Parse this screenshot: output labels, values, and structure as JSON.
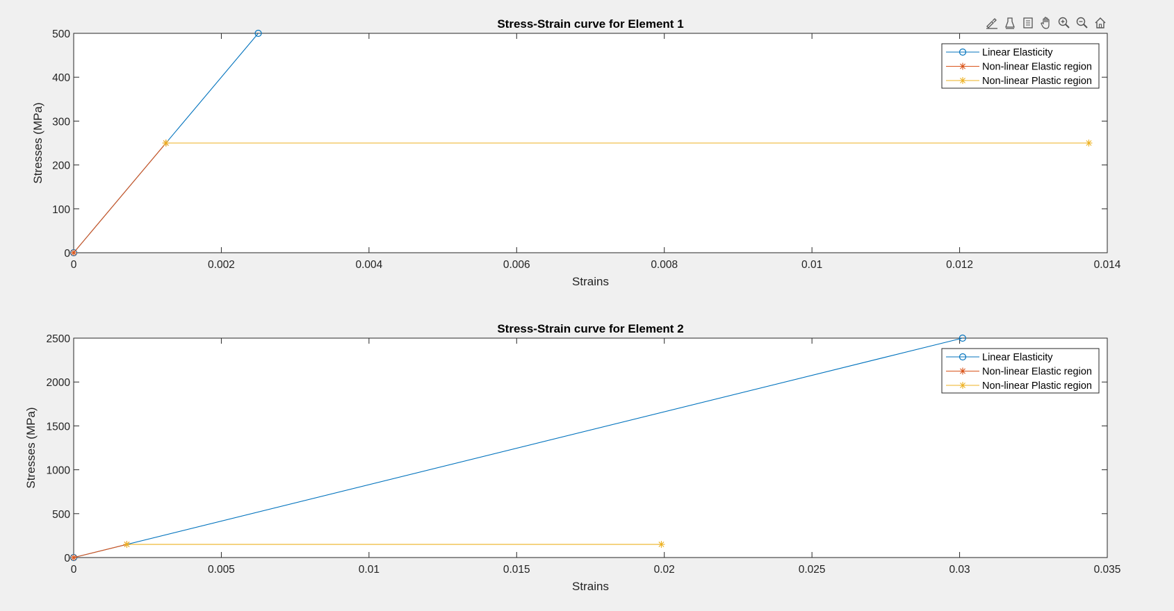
{
  "toolbar": {
    "icons": [
      "brush-icon",
      "data-tips-icon",
      "export-icon",
      "pan-icon",
      "zoom-in-icon",
      "zoom-out-icon",
      "home-icon"
    ]
  },
  "colors": {
    "linear": "#0072BD",
    "elastic": "#D95319",
    "plastic": "#EDB120"
  },
  "chart_data": [
    {
      "type": "line",
      "title": "Stress-Strain curve for Element 1",
      "xlabel": "Strains",
      "ylabel": "Stresses (MPa)",
      "xlim": [
        0,
        0.014
      ],
      "ylim": [
        0,
        500
      ],
      "xticks": [
        0,
        0.002,
        0.004,
        0.006,
        0.008,
        0.01,
        0.012,
        0.014
      ],
      "xtick_labels": [
        "0",
        "0.002",
        "0.004",
        "0.006",
        "0.008",
        "0.01",
        "0.012",
        "0.014"
      ],
      "yticks": [
        0,
        100,
        200,
        300,
        400,
        500
      ],
      "ytick_labels": [
        "0",
        "100",
        "200",
        "300",
        "400",
        "500"
      ],
      "legend_position": "top-right",
      "series": [
        {
          "name": "Linear Elasticity",
          "marker": "circle",
          "x": [
            0,
            0.0025
          ],
          "y": [
            0,
            500
          ]
        },
        {
          "name": "Non-linear Elastic region",
          "marker": "asterisk",
          "x": [
            0,
            0.00125
          ],
          "y": [
            0,
            250
          ]
        },
        {
          "name": "Non-linear Plastic region",
          "marker": "asterisk",
          "x": [
            0.00125,
            0.01375
          ],
          "y": [
            250,
            250
          ]
        }
      ]
    },
    {
      "type": "line",
      "title": "Stress-Strain curve for Element 2",
      "xlabel": "Strains",
      "ylabel": "Stresses (MPa)",
      "xlim": [
        0,
        0.035
      ],
      "ylim": [
        0,
        2500
      ],
      "xticks": [
        0,
        0.005,
        0.01,
        0.015,
        0.02,
        0.025,
        0.03,
        0.035
      ],
      "xtick_labels": [
        "0",
        "0.005",
        "0.01",
        "0.015",
        "0.02",
        "0.025",
        "0.03",
        "0.035"
      ],
      "yticks": [
        0,
        500,
        1000,
        1500,
        2000,
        2500
      ],
      "ytick_labels": [
        "0",
        "500",
        "1000",
        "1500",
        "2000",
        "2500"
      ],
      "legend_position": "top-right",
      "series": [
        {
          "name": "Linear Elasticity",
          "marker": "circle",
          "x": [
            0,
            0.0301
          ],
          "y": [
            0,
            2500
          ]
        },
        {
          "name": "Non-linear Elastic region",
          "marker": "asterisk",
          "x": [
            0,
            0.0018
          ],
          "y": [
            0,
            150
          ]
        },
        {
          "name": "Non-linear Plastic region",
          "marker": "asterisk",
          "x": [
            0.0018,
            0.0199
          ],
          "y": [
            150,
            150
          ]
        }
      ]
    }
  ]
}
